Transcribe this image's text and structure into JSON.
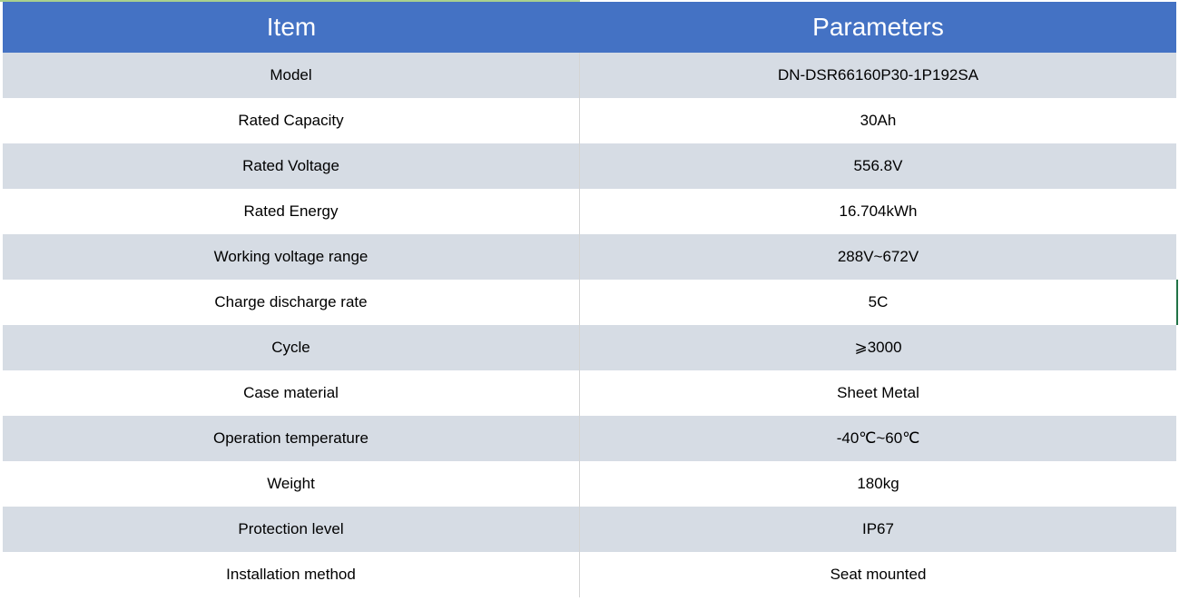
{
  "table": {
    "header": [
      "Item",
      "Parameters"
    ],
    "rows": [
      [
        "Model",
        "DN-DSR66160P30-1P192SA"
      ],
      [
        "Rated Capacity",
        "30Ah"
      ],
      [
        "Rated Voltage",
        "556.8V"
      ],
      [
        "Rated Energy",
        "16.704kWh"
      ],
      [
        "Working voltage range",
        "288V~672V"
      ],
      [
        "Charge discharge rate",
        "5C"
      ],
      [
        "Cycle",
        "⩾3000"
      ],
      [
        "Case material",
        "Sheet Metal"
      ],
      [
        "Operation temperature",
        "-40℃~60℃"
      ],
      [
        "Weight",
        "180kg"
      ],
      [
        "Protection level",
        "IP67"
      ],
      [
        "Installation method",
        "Seat mounted"
      ]
    ]
  }
}
